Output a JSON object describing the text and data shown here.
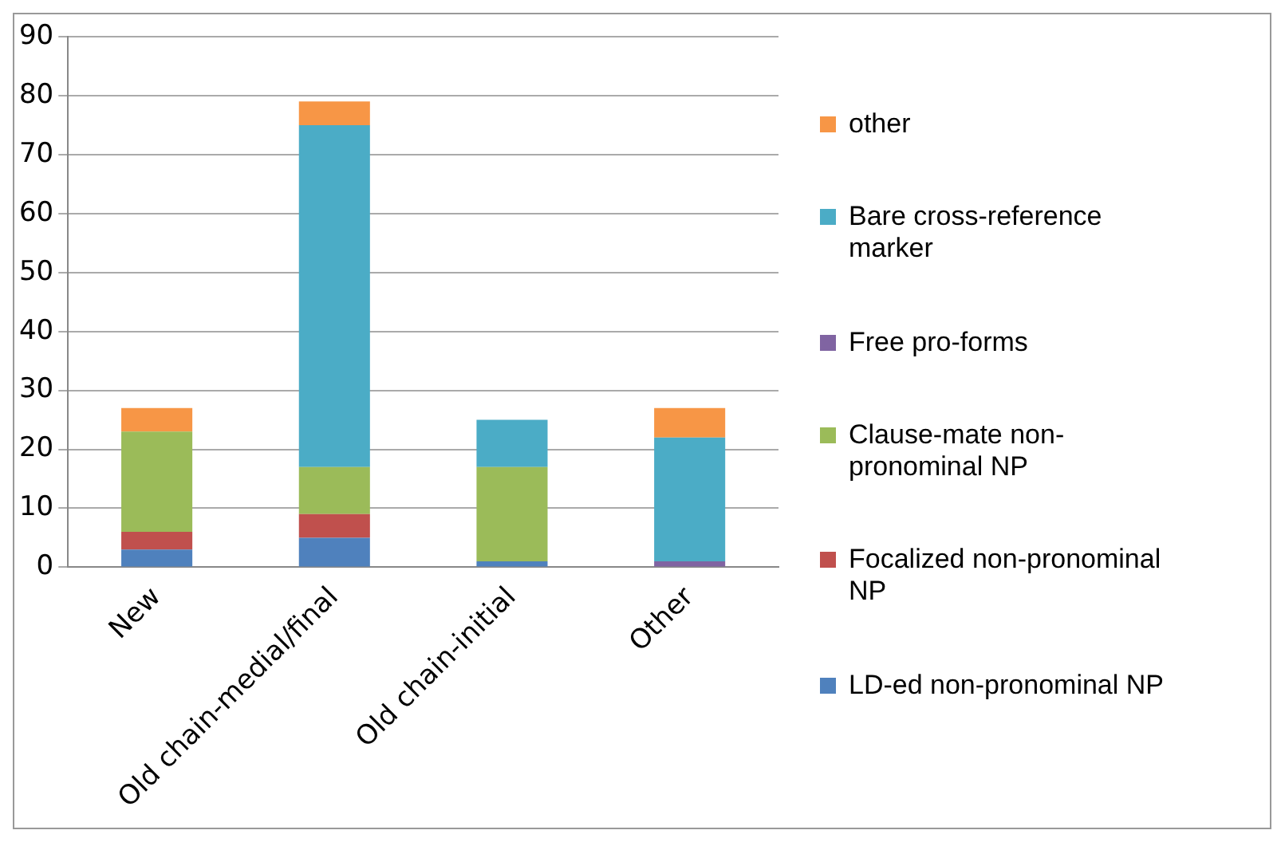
{
  "chart_data": {
    "type": "bar",
    "stacked": true,
    "categories": [
      "New",
      "Old chain-medial/final",
      "Old chain-initial",
      "Other"
    ],
    "series": [
      {
        "name": "LD-ed non-pronominal NP",
        "color": "#4f81bd",
        "values": [
          3,
          5,
          1,
          0
        ]
      },
      {
        "name": "Focalized non-pronominal NP",
        "color": "#c0504d",
        "values": [
          3,
          4,
          0,
          0
        ]
      },
      {
        "name": "Clause-mate non-pronominal NP",
        "color": "#9bbb59",
        "values": [
          17,
          8,
          16,
          0
        ]
      },
      {
        "name": "Free pro-forms",
        "color": "#8064a2",
        "values": [
          0,
          0,
          0,
          1
        ]
      },
      {
        "name": "Bare cross-reference marker",
        "color": "#4bacc6",
        "values": [
          0,
          58,
          8,
          21
        ]
      },
      {
        "name": "other",
        "color": "#f79646",
        "values": [
          4,
          4,
          0,
          5
        ]
      }
    ],
    "ylim": [
      0,
      90
    ],
    "yticks": [
      0,
      10,
      20,
      30,
      40,
      50,
      60,
      70,
      80,
      90
    ],
    "grid": "y",
    "legend": "right"
  }
}
